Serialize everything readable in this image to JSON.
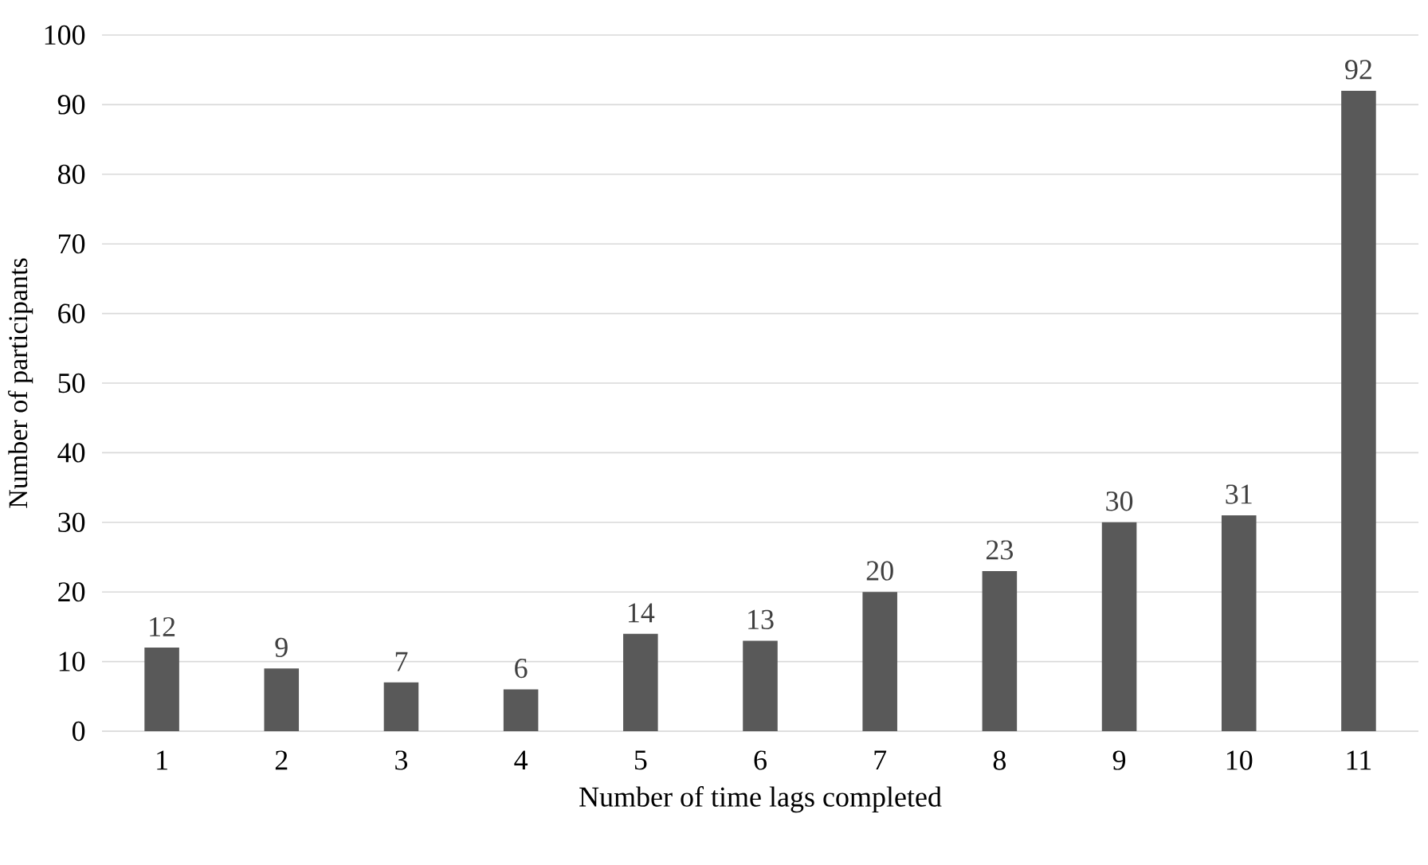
{
  "chart_data": {
    "type": "bar",
    "xlabel": "Number of time lags completed",
    "ylabel": "Number of participants",
    "categories": [
      "1",
      "2",
      "3",
      "4",
      "5",
      "6",
      "7",
      "8",
      "9",
      "10",
      "11"
    ],
    "values": [
      12,
      9,
      7,
      6,
      14,
      13,
      20,
      23,
      30,
      31,
      92
    ],
    "color": "#595959",
    "ylim": [
      0,
      100
    ],
    "yticks": [
      0,
      10,
      20,
      30,
      40,
      50,
      60,
      70,
      80,
      90,
      100
    ],
    "grid": "y",
    "data_labels": true
  }
}
